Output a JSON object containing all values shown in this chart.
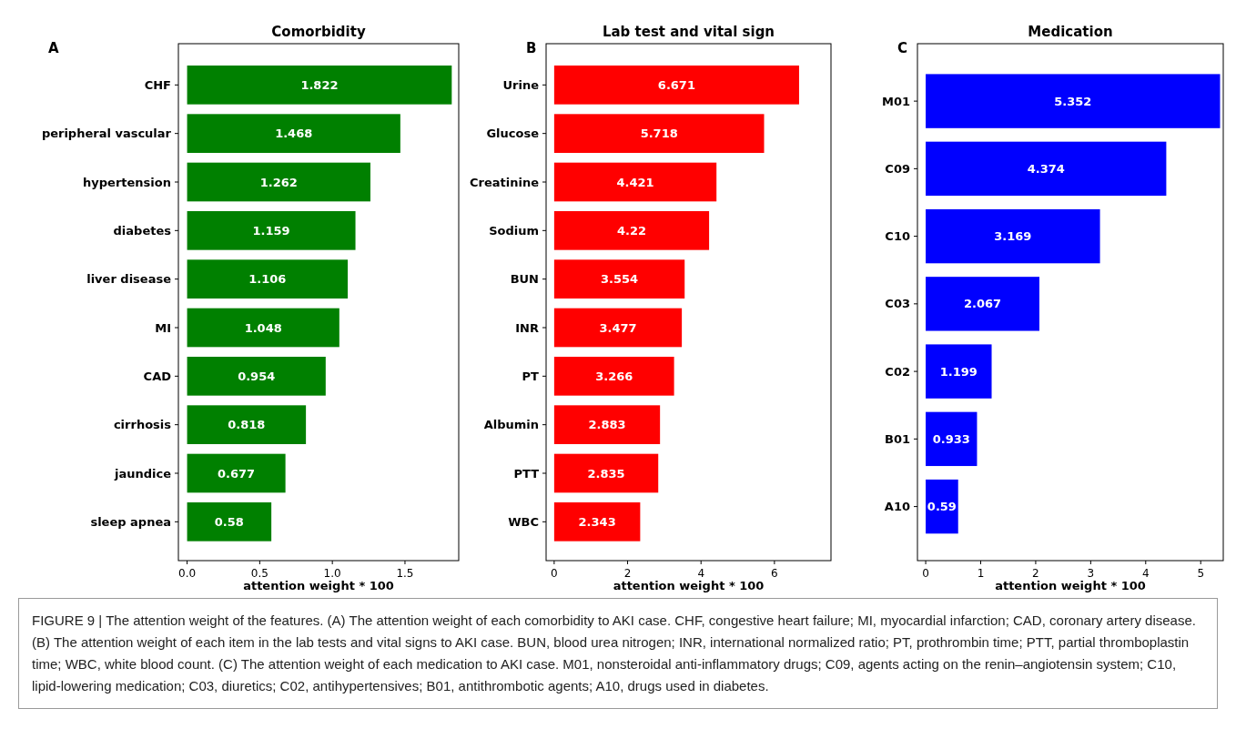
{
  "chart_data": [
    {
      "type": "bar",
      "orientation": "horizontal",
      "title": "Comorbidity",
      "xlabel": "attention weight * 100",
      "annotations": [
        "A",
        "FIGURE 9 | The attention weight of the features. (A) The attention weight of each comorbidity to AKI case. CHF, congestive heart failure; MI, myocardial infarction; CAD, coronary artery disease. (B) The attention weight of each item in the lab tests and vital signs to AKI case. BUN, blood urea nitrogen; INR, international normalized ratio; PT, prothrombin time; PTT, partial thromboplastin time; WBC, white blood count. (C) The attention weight of each medication to AKI case. M01, nonsteroidal anti-inflammatory drugs; C09, agents acting on the renin–angiotensin system; C10, lipid-lowering medication; C03, diuretics; C02, antihypertensives; B01, antithrombotic agents; A10, drugs used in diabetes."
      ],
      "categories": [
        "CHF",
        "peripheral vascular",
        "hypertension",
        "diabetes",
        "liver disease",
        "MI",
        "CAD",
        "cirrhosis",
        "jaundice",
        "sleep apnea"
      ],
      "values": [
        1.822,
        1.468,
        1.262,
        1.159,
        1.106,
        1.048,
        0.954,
        0.818,
        0.677,
        0.58
      ],
      "color": "#008000",
      "data_labels": true,
      "xlim": [
        -0.06,
        1.87
      ],
      "xticks": [
        {
          "value": 0,
          "label": "0.0"
        },
        {
          "value": 0.5,
          "label": "0.5"
        },
        {
          "value": 1,
          "label": "1.0"
        },
        {
          "value": 1.5,
          "label": "1.5"
        }
      ]
    },
    {
      "type": "bar",
      "orientation": "horizontal",
      "title": "Lab test and vital sign",
      "xlabel": "attention weight * 100",
      "annotations": [
        "B"
      ],
      "categories": [
        "Urine",
        "Glucose",
        "Creatinine",
        "Sodium",
        "BUN",
        "INR",
        "PT",
        "Albumin",
        "PTT",
        "WBC"
      ],
      "values": [
        6.671,
        5.718,
        4.421,
        4.22,
        3.554,
        3.477,
        3.266,
        2.883,
        2.835,
        2.343
      ],
      "color": "#ff0000",
      "data_labels": true,
      "xlim": [
        -0.22,
        7.54
      ],
      "xticks": [
        0,
        2,
        4,
        6
      ]
    },
    {
      "type": "bar",
      "orientation": "horizontal",
      "title": "Medication",
      "xlabel": "attention weight * 100",
      "annotations": [
        "C"
      ],
      "categories": [
        "M01",
        "C09",
        "C10",
        "C03",
        "C02",
        "B01",
        "A10"
      ],
      "values": [
        5.352,
        4.374,
        3.169,
        2.067,
        1.199,
        0.933,
        0.59
      ],
      "color": "#0000ff",
      "data_labels": true,
      "xlim": [
        -0.15,
        5.41
      ],
      "xticks": [
        0,
        1,
        2,
        3,
        4,
        5
      ]
    }
  ]
}
